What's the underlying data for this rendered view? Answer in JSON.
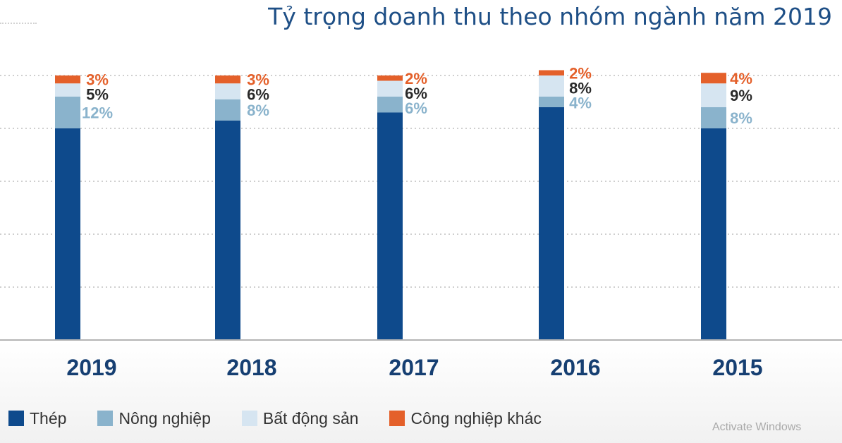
{
  "colors": {
    "thep": "#0e4a8c",
    "nong_nghiep": "#8ab3cc",
    "bat_dong_san": "#d6e5f1",
    "cong_nghiep_khac": "#e4602a",
    "title": "#1e4f86",
    "year_label": "#163f72",
    "label_dark": "#2a2a2a"
  },
  "chart_data": {
    "type": "bar",
    "stacked": true,
    "title": "Tỷ trọng doanh thu theo nhóm ngành năm 2019",
    "categories": [
      "2019",
      "2018",
      "2017",
      "2016",
      "2015"
    ],
    "ylim": [
      0,
      100
    ],
    "grid": true,
    "legend_position": "bottom-left",
    "series": [
      {
        "name": "Thép",
        "key": "thep",
        "values": [
          80,
          83,
          86,
          88,
          80
        ],
        "labels": [
          "",
          "",
          "",
          "",
          ""
        ]
      },
      {
        "name": "Nông nghiệp",
        "key": "nong_nghiep",
        "values": [
          12,
          8,
          6,
          4,
          8
        ],
        "labels": [
          "12%",
          "8%",
          "6%",
          "4%",
          "8%"
        ]
      },
      {
        "name": "Bất động sản",
        "key": "bat_dong_san",
        "values": [
          5,
          6,
          6,
          8,
          9
        ],
        "labels": [
          "5%",
          "6%",
          "6%",
          "8%",
          "9%"
        ]
      },
      {
        "name": "Công nghiệp khác",
        "key": "cong_nghiep_khac",
        "values": [
          3,
          3,
          2,
          2,
          4
        ],
        "labels": [
          "3%",
          "3%",
          "2%",
          "2%",
          "4%"
        ]
      }
    ]
  },
  "watermark": "Activate Windows"
}
